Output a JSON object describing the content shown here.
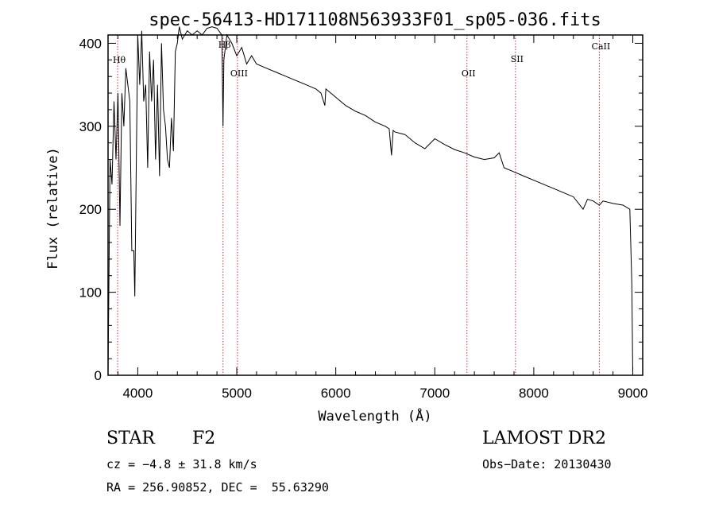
{
  "chart_data": {
    "type": "line",
    "title": "spec-56413-HD171108N563933F01_sp05-036.fits",
    "xlabel": "Wavelength (Å)",
    "ylabel": "Flux (relative)",
    "xlim": [
      3700,
      9100
    ],
    "ylim": [
      0,
      410
    ],
    "xticks": [
      4000,
      5000,
      6000,
      7000,
      8000,
      9000
    ],
    "yticks": [
      0,
      100,
      200,
      300,
      400
    ],
    "grid": false,
    "series": [
      {
        "x": [
          3700,
          3720,
          3740,
          3760,
          3780,
          3800,
          3820,
          3840,
          3860,
          3880,
          3900,
          3920,
          3940,
          3960,
          3970,
          3980,
          4000,
          4020,
          4040,
          4060,
          4080,
          4100,
          4120,
          4140,
          4160,
          4180,
          4200,
          4220,
          4240,
          4260,
          4280,
          4300,
          4320,
          4340,
          4360,
          4380,
          4400,
          4420,
          4450,
          4500,
          4550,
          4600,
          4650,
          4700,
          4750,
          4800,
          4850,
          4861,
          4870,
          4900,
          4950,
          5000,
          5050,
          5100,
          5150,
          5200,
          5300,
          5400,
          5500,
          5600,
          5700,
          5800,
          5850,
          5890,
          5900,
          5950,
          6000,
          6100,
          6200,
          6300,
          6400,
          6500,
          6540,
          6563,
          6580,
          6600,
          6700,
          6800,
          6900,
          7000,
          7100,
          7200,
          7300,
          7400,
          7500,
          7600,
          7650,
          7700,
          7800,
          7900,
          8000,
          8100,
          8200,
          8300,
          8400,
          8498,
          8542,
          8600,
          8662,
          8700,
          8800,
          8900,
          8970,
          8990,
          9000
        ],
        "y": [
          0,
          260,
          230,
          330,
          260,
          340,
          180,
          340,
          300,
          370,
          350,
          330,
          150,
          150,
          95,
          200,
          410,
          350,
          415,
          330,
          350,
          250,
          390,
          330,
          380,
          260,
          350,
          240,
          400,
          320,
          300,
          260,
          250,
          310,
          270,
          390,
          400,
          420,
          405,
          415,
          410,
          415,
          410,
          418,
          420,
          418,
          410,
          300,
          380,
          410,
          400,
          385,
          395,
          375,
          385,
          375,
          370,
          365,
          360,
          355,
          350,
          345,
          340,
          325,
          345,
          340,
          335,
          325,
          318,
          313,
          305,
          300,
          297,
          265,
          295,
          293,
          290,
          280,
          273,
          285,
          278,
          272,
          268,
          263,
          260,
          262,
          268,
          250,
          245,
          240,
          235,
          230,
          225,
          220,
          215,
          200,
          212,
          210,
          205,
          210,
          207,
          205,
          200,
          110,
          0
        ]
      }
    ],
    "lines": [
      {
        "label": "Hθ",
        "x": 3797
      },
      {
        "label": "Hβ",
        "x": 4861
      },
      {
        "label": "OIII",
        "x": 5007
      },
      {
        "label": "OII",
        "x": 7325
      },
      {
        "label": "SII",
        "x": 7815
      },
      {
        "label": "CaII",
        "x": 8662
      }
    ]
  },
  "info": {
    "object_class": "STAR",
    "subclass": "F2",
    "survey": "LAMOST DR2",
    "cz": "cz = −4.8 ± 31.8 km/s",
    "obs_date": "Obs−Date: 20130430",
    "coords": "RA = 256.90852, DEC =  55.63290"
  },
  "colors": {
    "spectrum": "#000000",
    "line_marker": "#c8323c",
    "axis": "#000000"
  }
}
